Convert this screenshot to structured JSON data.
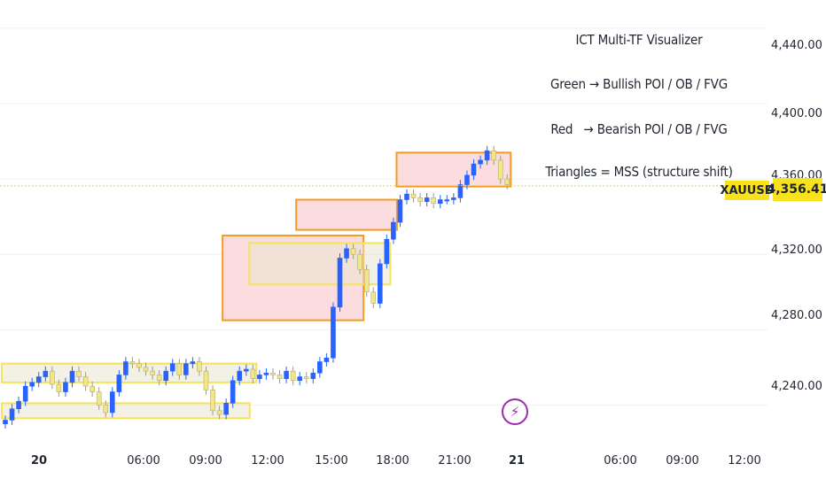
{
  "annotations": [
    "ICT Multi-TF Visualizer",
    "Green → Bullish POI / OB / FVG",
    "Red   → Bearish POI / OB / FVG",
    "Triangles = MSS (structure shift)"
  ],
  "symbol": "XAUUSD",
  "last_price_label": "4,356.41",
  "colors": {
    "up": "#2962ff",
    "down": "#f0e68c",
    "bear_zone_fill": "#fbd9dc",
    "bear_zone_border": "#f59a23",
    "yellow_border": "#f5e35a",
    "price_line": "#f5d000"
  },
  "chart_data": {
    "type": "candlestick",
    "symbol": "XAUUSD",
    "y_ticks": [
      "4,240.00",
      "4,280.00",
      "4,320.00",
      "4,360.00",
      "4,400.00",
      "4,440.00"
    ],
    "y_tick_values": [
      4240,
      4280,
      4320,
      4360,
      4400,
      4440
    ],
    "ylim": [
      4220,
      4455
    ],
    "x_ticks": [
      {
        "label": "20",
        "bold": true
      },
      {
        "label": "06:00"
      },
      {
        "label": "09:00"
      },
      {
        "label": "12:00"
      },
      {
        "label": "15:00"
      },
      {
        "label": "18:00"
      },
      {
        "label": "21:00"
      },
      {
        "label": "21",
        "bold": true
      },
      {
        "label": "06:00"
      },
      {
        "label": "09:00"
      },
      {
        "label": "12:00"
      }
    ],
    "last_price": 4356.41,
    "close_series": [
      4232,
      4238,
      4242,
      4250,
      4252,
      4255,
      4258,
      4251,
      4247,
      4252,
      4258,
      4255,
      4250,
      4247,
      4240,
      4236,
      4247,
      4256,
      4263,
      4262,
      4260,
      4258,
      4256,
      4253,
      4258,
      4262,
      4256,
      4262,
      4263,
      4258,
      4248,
      4237,
      4235,
      4241,
      4253,
      4258,
      4259,
      4254,
      4256,
      4257,
      4256,
      4254,
      4258,
      4253,
      4255,
      4254,
      4257,
      4263,
      4265,
      4292,
      4318,
      4323,
      4320,
      4312,
      4300,
      4294,
      4315,
      4328,
      4337,
      4349,
      4352,
      4350,
      4348,
      4350,
      4347,
      4349,
      4349,
      4350,
      4357,
      4362,
      4368,
      4370,
      4375,
      4370,
      4360,
      4357
    ],
    "zones": [
      {
        "type": "bearish",
        "top": 4374.0,
        "bottom": 4356.0,
        "start_index": 59,
        "end_index": 75
      },
      {
        "type": "bearish",
        "top": 4349.0,
        "bottom": 4333.0,
        "start_index": 44,
        "end_index": 58
      },
      {
        "type": "bearish",
        "top": 4330.0,
        "bottom": 4285.0,
        "start_index": 33,
        "end_index": 53
      },
      {
        "type": "neutral",
        "top": 4326.0,
        "bottom": 4304.0,
        "start_index": 37,
        "end_index": 57
      },
      {
        "type": "neutral",
        "top": 4262.0,
        "bottom": 4252.0,
        "start_index": 0,
        "end_index": 37
      },
      {
        "type": "neutral",
        "top": 4241.0,
        "bottom": 4233.0,
        "start_index": 0,
        "end_index": 36
      }
    ]
  }
}
